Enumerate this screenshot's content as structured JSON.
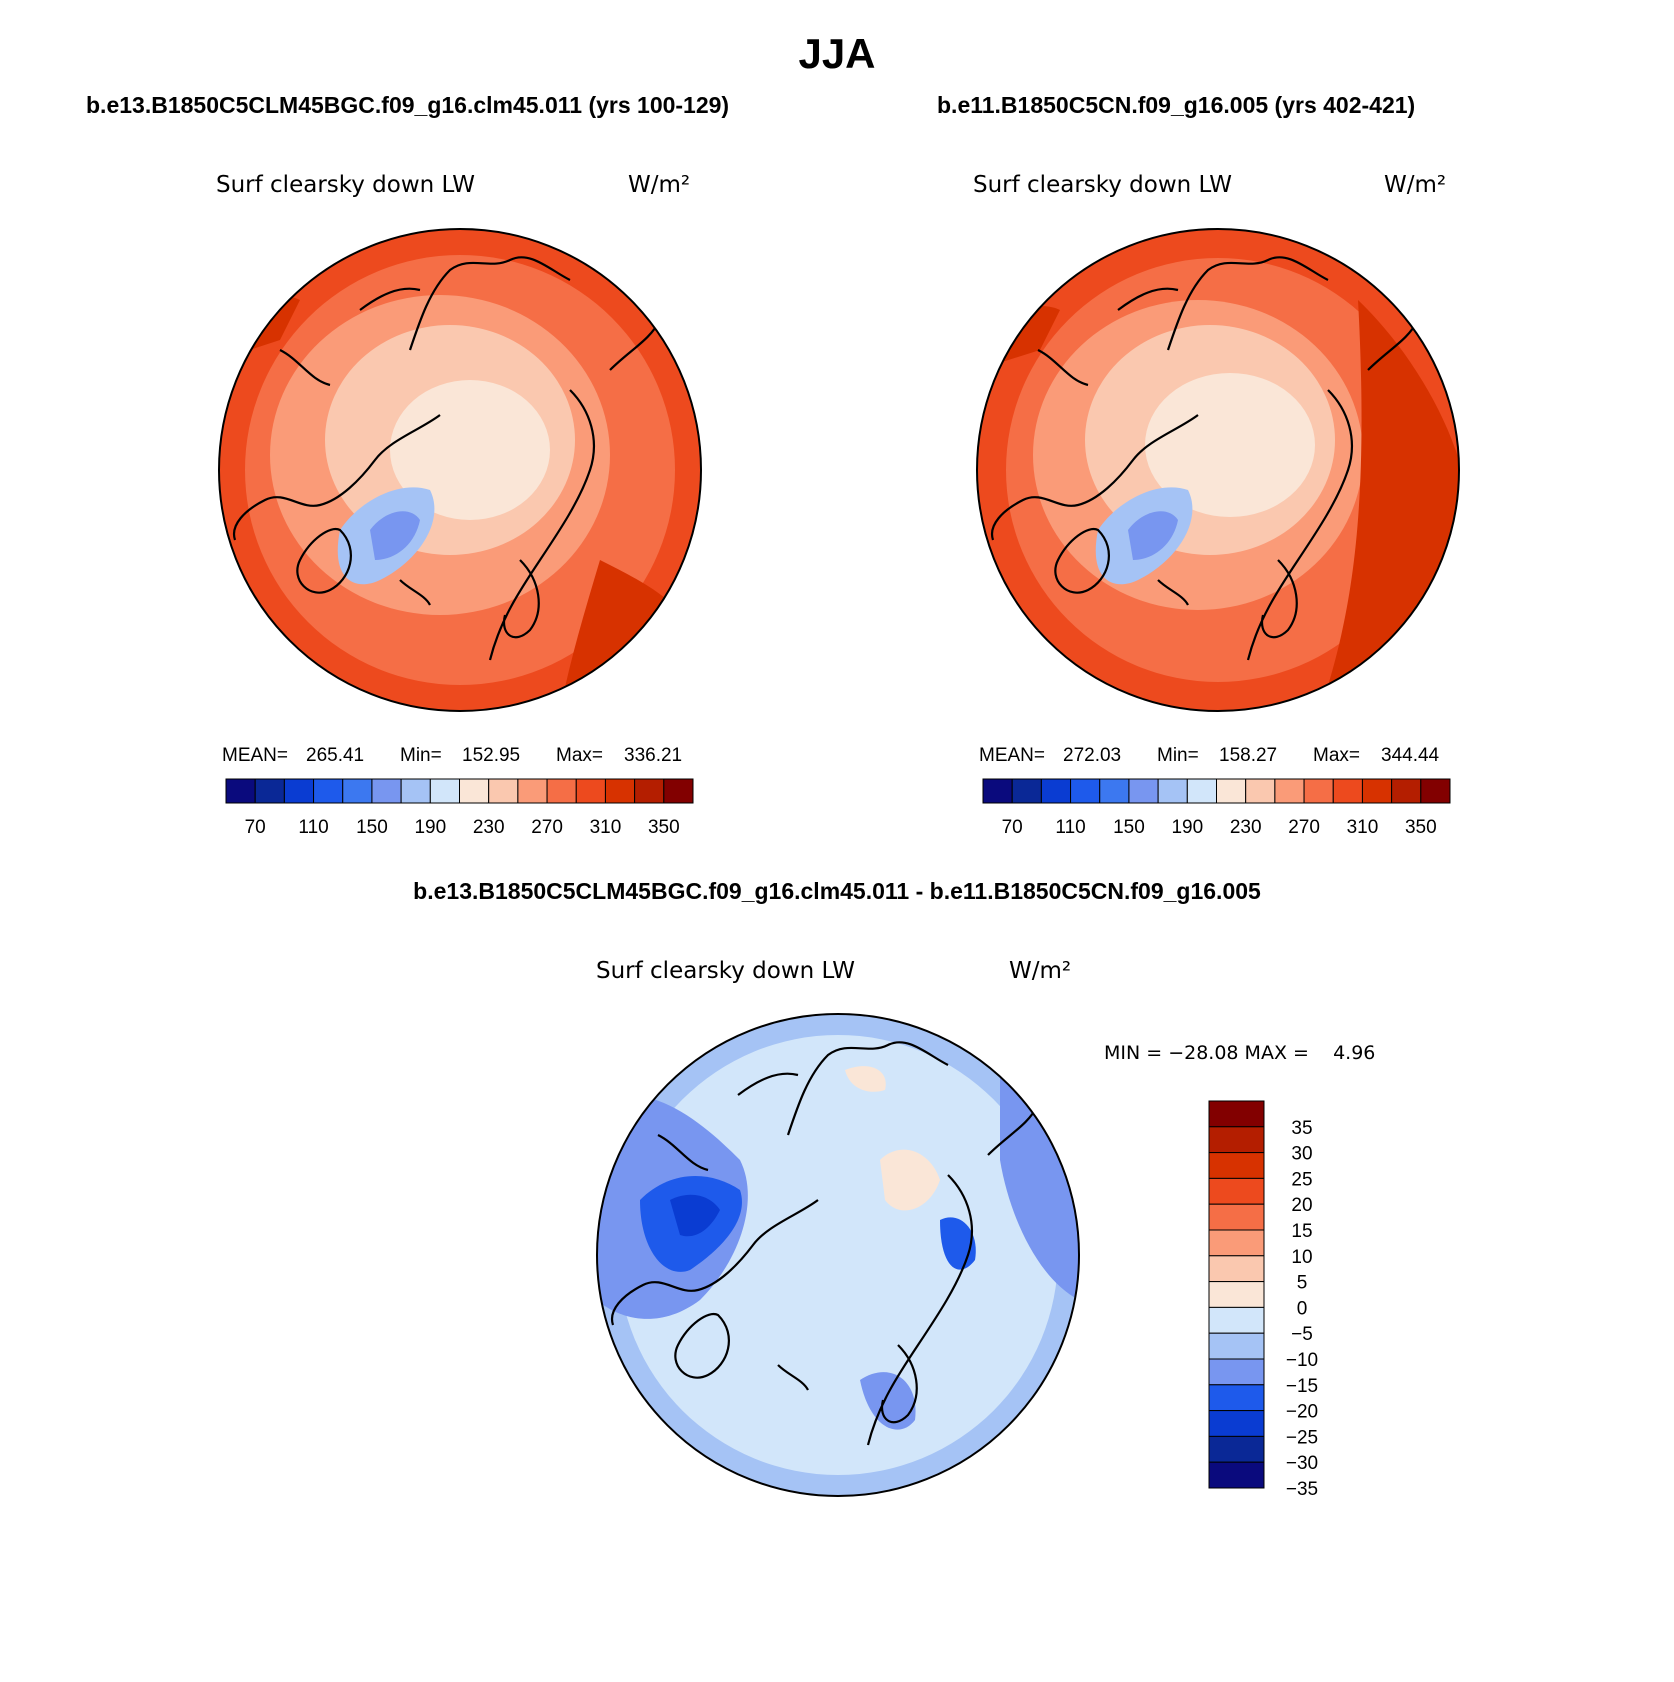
{
  "title": "JJA",
  "colors": {
    "abs": [
      "#0a0a7d",
      "#0a2896",
      "#0a3cd2",
      "#1e5aeb",
      "#3c78f0",
      "#7896f0",
      "#a5c3f5",
      "#d2e6fa",
      "#fae6d7",
      "#fac8af",
      "#fa9b78",
      "#f56e46",
      "#ed4a1e",
      "#d73200",
      "#b41e00",
      "#820000"
    ],
    "diff": [
      "#0a0a7d",
      "#0a2896",
      "#0a3cd2",
      "#1e5aeb",
      "#7896f0",
      "#a5c3f5",
      "#d2e6fa",
      "#fae6d7",
      "#fac8af",
      "#fa9b78",
      "#f56e46",
      "#ed4a1e",
      "#d73200",
      "#b41e00",
      "#820000"
    ],
    "coast": "#000000"
  },
  "panels": [
    {
      "id": "case1",
      "header": "b.e13.B1850C5CLM45BGC.f09_g16.clm45.011 (yrs 100-129)",
      "variable": "Surf clearsky down LW",
      "units": "W/m²",
      "stats": {
        "mean_label": "MEAN=",
        "mean": "265.41",
        "min_label": "Min=",
        "min": "152.95",
        "max_label": "Max=",
        "max": "336.21"
      },
      "colorbar_ticks": [
        "70",
        "110",
        "150",
        "190",
        "230",
        "270",
        "310",
        "350"
      ]
    },
    {
      "id": "case2",
      "header": "b.e11.B1850C5CN.f09_g16.005 (yrs 402-421)",
      "variable": "Surf clearsky down LW",
      "units": "W/m²",
      "stats": {
        "mean_label": "MEAN=",
        "mean": "272.03",
        "min_label": "Min=",
        "min": "158.27",
        "max_label": "Max=",
        "max": "344.44"
      },
      "colorbar_ticks": [
        "70",
        "110",
        "150",
        "190",
        "230",
        "270",
        "310",
        "350"
      ]
    }
  ],
  "difference": {
    "header": "b.e13.B1850C5CLM45BGC.f09_g16.clm45.011 - b.e11.B1850C5CN.f09_g16.005",
    "variable": "Surf clearsky down LW",
    "units": "W/m²",
    "minmax_text": "MIN = −28.08 MAX =    4.96",
    "colorbar_ticks": [
      "35",
      "30",
      "25",
      "20",
      "15",
      "10",
      "5",
      "0",
      "−5",
      "−10",
      "−15",
      "−20",
      "−25",
      "−30",
      "−35"
    ]
  },
  "chart_data": [
    {
      "type": "heatmap",
      "title": "Surf clearsky down LW",
      "units": "W/m²",
      "projection": "polar stereographic (North)",
      "season": "JJA",
      "mean": 265.41,
      "min": 152.95,
      "max": 336.21,
      "levels": [
        70,
        90,
        110,
        130,
        150,
        170,
        190,
        210,
        230,
        250,
        270,
        290,
        310,
        330,
        350
      ]
    },
    {
      "type": "heatmap",
      "title": "Surf clearsky down LW",
      "units": "W/m²",
      "projection": "polar stereographic (North)",
      "season": "JJA",
      "mean": 272.03,
      "min": 158.27,
      "max": 344.44,
      "levels": [
        70,
        90,
        110,
        130,
        150,
        170,
        190,
        210,
        230,
        250,
        270,
        290,
        310,
        330,
        350
      ]
    },
    {
      "type": "heatmap",
      "title": "Surf clearsky down LW (difference)",
      "units": "W/m²",
      "projection": "polar stereographic (North)",
      "season": "JJA",
      "min": -28.08,
      "max": 4.96,
      "levels": [
        -35,
        -30,
        -25,
        -20,
        -15,
        -10,
        -5,
        0,
        5,
        10,
        15,
        20,
        25,
        30,
        35
      ]
    }
  ]
}
